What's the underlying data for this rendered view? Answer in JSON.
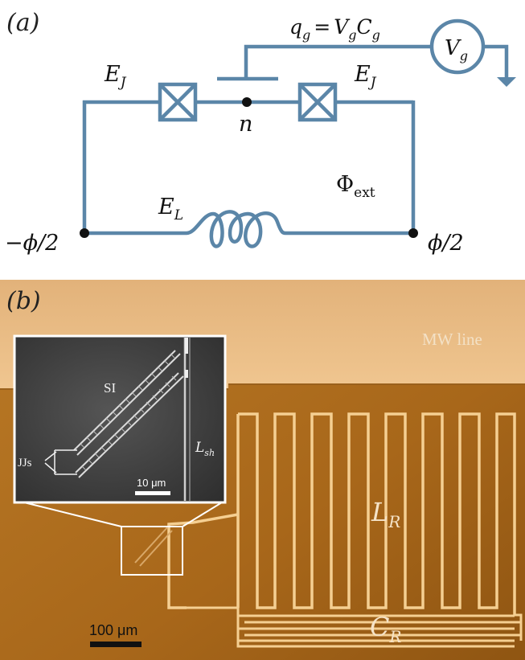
{
  "panel_a": {
    "label": "(a)",
    "charge_eq": {
      "lhs": "q",
      "lhs_sub": "g",
      "mid1": "V",
      "mid1_sub": "g",
      "mid2": "C",
      "mid2_sub": "g"
    },
    "source": {
      "sym": "V",
      "sub": "g"
    },
    "junction_left": {
      "sym": "E",
      "sub": "J"
    },
    "junction_right": {
      "sym": "E",
      "sub": "J"
    },
    "island": "n",
    "flux": {
      "sym": "Φ",
      "sub": "ext"
    },
    "inductor": {
      "sym": "E",
      "sub": "L"
    },
    "phase_left": "−ϕ/2",
    "phase_right": "ϕ/2",
    "colors": {
      "wire": "#5b86a8",
      "node": "#111111"
    }
  },
  "panel_b": {
    "label": "(b)",
    "mw_line": "MW line",
    "inductor": {
      "sym": "L",
      "sub": "R"
    },
    "capacitor": {
      "sym": "C",
      "sub": "R"
    },
    "scale_bar": "100 μm",
    "inset": {
      "si": "SI",
      "jjs": "JJs",
      "shunt": {
        "sym": "L",
        "sub": "sh"
      },
      "scale_bar": "10 μm"
    },
    "colors": {
      "substrate": "#a8681c",
      "mw_metal": "#f0c88a",
      "trace": "#f5cf92"
    }
  }
}
